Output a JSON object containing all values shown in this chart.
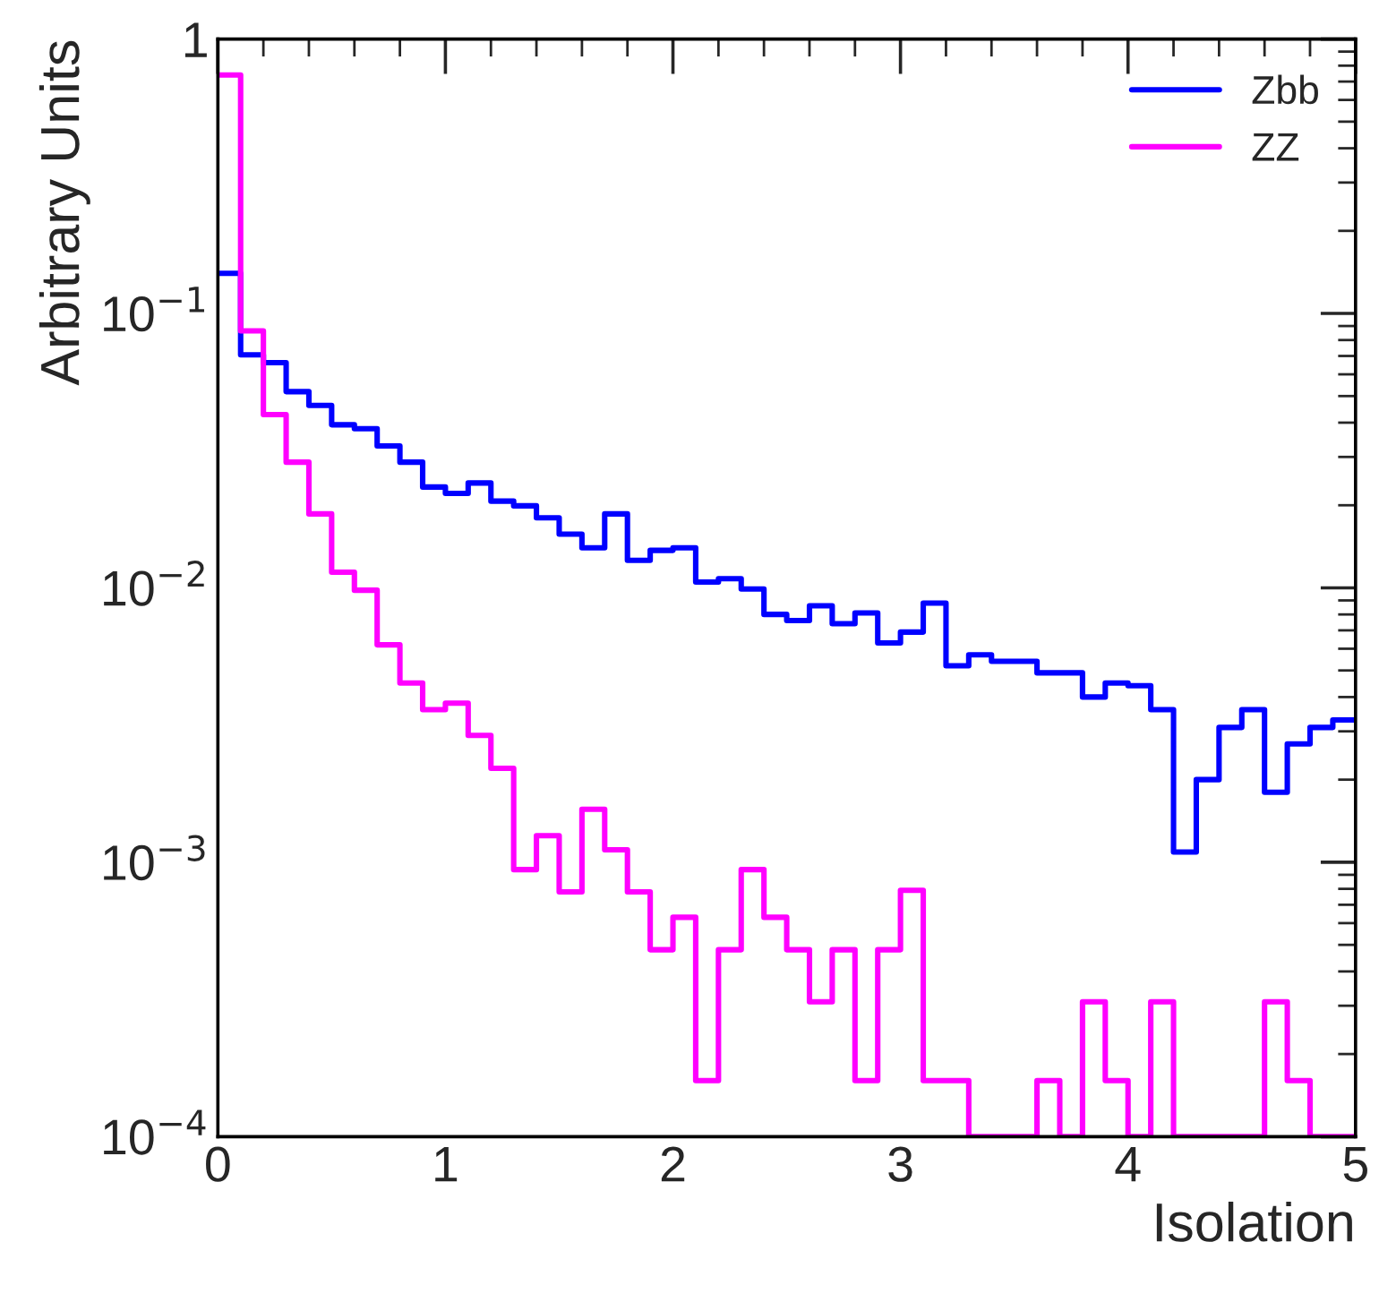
{
  "chart_data": {
    "type": "histogram",
    "xlabel": "Isolation",
    "ylabel": "Arbitrary Units",
    "log": "y",
    "legend": "top right",
    "grid": false,
    "bins": [
      0,
      0.1,
      0.2,
      0.3,
      0.4,
      0.5,
      0.6,
      0.7,
      0.8,
      0.9,
      1,
      1.1,
      1.2,
      1.3,
      1.4,
      1.5,
      1.6,
      1.7,
      1.8,
      1.9,
      2,
      2.1,
      2.2,
      2.3,
      2.4,
      2.5,
      2.6,
      2.7,
      2.8,
      2.9,
      3,
      3.1,
      3.2,
      3.3,
      3.4,
      3.5,
      3.6,
      3.7,
      3.8,
      3.9,
      4,
      4.1,
      4.2,
      4.3,
      4.4,
      4.5,
      4.6,
      4.7,
      4.8,
      4.9,
      5
    ],
    "xlim": [
      0,
      5
    ],
    "xticks": [
      0,
      1,
      2,
      3,
      4,
      5
    ],
    "ylim": [
      0.0001,
      1
    ],
    "yticks": [
      {
        "value": 0.0001,
        "label": "10$^{−4}$"
      },
      {
        "value": 0.001,
        "label": "10$^{−3}$"
      },
      {
        "value": 0.01,
        "label": "10$^{−2}$"
      },
      {
        "value": 0.1,
        "label": "10$^{−1}$"
      },
      1
    ],
    "series": [
      {
        "name": "Zbb",
        "color": "#0000ff",
        "values": [
          0.14,
          0.0707,
          0.0662,
          0.0519,
          0.0462,
          0.0393,
          0.038,
          0.0329,
          0.0287,
          0.0233,
          0.0221,
          0.0241,
          0.0207,
          0.0199,
          0.018,
          0.0157,
          0.014,
          0.0186,
          0.0126,
          0.0137,
          0.014,
          0.0105,
          0.0108,
          0.0099,
          0.008,
          0.0076,
          0.0086,
          0.0074,
          0.0081,
          0.0063,
          0.0069,
          0.0088,
          0.0052,
          0.0057,
          0.0054,
          0.0054,
          0.0049,
          0.0049,
          0.004,
          0.0045,
          0.0044,
          0.0036,
          0.00109,
          0.002,
          0.0031,
          0.0036,
          0.0018,
          0.0027,
          0.0031,
          0.0033
        ]
      },
      {
        "name": "ZZ",
        "color": "#ff00ff",
        "values": [
          0.74,
          0.0864,
          0.0428,
          0.0287,
          0.0186,
          0.0114,
          0.0098,
          0.0062,
          0.0045,
          0.0036,
          0.0038,
          0.0029,
          0.0022,
          0.00094,
          0.00125,
          0.00078,
          0.00156,
          0.00111,
          0.00078,
          0.00048,
          0.00063,
          0.00016,
          0.00048,
          0.00094,
          0.00063,
          0.00048,
          0.00031,
          0.00048,
          0.00016,
          0.00048,
          0.00079,
          0.00016,
          0.00016,
          0.0001,
          0.0001,
          0.0001,
          0.00016,
          0.0001,
          0.00031,
          0.00016,
          0.0001,
          0.00031,
          0.0001,
          0.0001,
          0.0001,
          0.0001,
          0.00031,
          0.00016,
          0.0001,
          0.0001
        ]
      }
    ]
  }
}
